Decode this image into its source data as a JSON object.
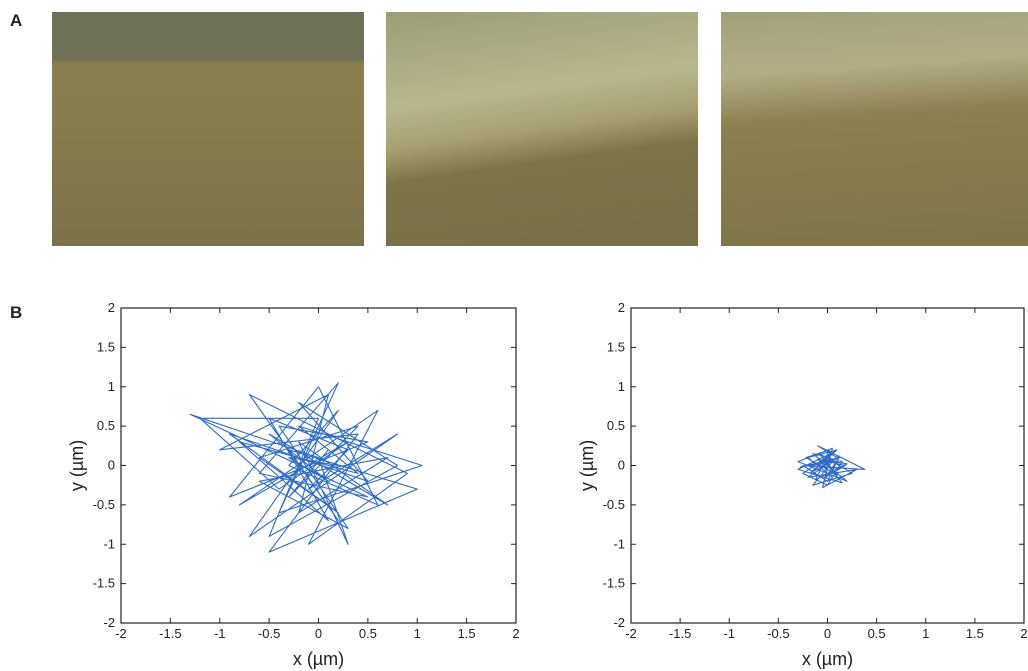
{
  "panel_labels": [
    "A",
    "B"
  ],
  "chart_data": [
    {
      "type": "line",
      "color": "#2d6bc4",
      "x": [
        0.1,
        -0.3,
        0.4,
        -0.6,
        0.2,
        -0.9,
        0.5,
        -0.2,
        0.8,
        -0.5,
        0.0,
        -1.2,
        -0.4,
        0.3,
        -0.8,
        0.6,
        -0.1,
        0.9,
        -0.7,
        0.2,
        -0.3,
        1.0,
        -0.5,
        0.4,
        -1.0,
        0.1,
        -0.2,
        0.7,
        -0.6,
        0.3,
        -0.4,
        0.5,
        -0.9,
        0.0,
        0.6,
        -0.3,
        0.2,
        -0.7,
        0.8,
        -0.1,
        0.3,
        -0.5,
        0.1,
        -0.8,
        0.4,
        -0.2,
        1.05,
        -0.4,
        0.2,
        -0.6,
        0.5,
        -1.3,
        0.0,
        0.3,
        -0.2,
        0.7,
        -0.5,
        0.1,
        -0.3,
        0.2
      ],
      "values": [
        0.2,
        -0.4,
        0.5,
        0.1,
        -0.6,
        0.4,
        -0.2,
        0.8,
        0.0,
        -0.9,
        0.6,
        0.6,
        -0.3,
        0.3,
        -0.5,
        0.7,
        -1.0,
        -0.1,
        0.9,
        -0.7,
        0.2,
        -0.3,
        -1.1,
        0.4,
        0.2,
        0.9,
        -0.6,
        0.1,
        -0.2,
        -0.8,
        0.5,
        0.3,
        -0.4,
        1.0,
        -0.5,
        0.0,
        0.7,
        -0.9,
        0.4,
        -0.3,
        0.2,
        0.6,
        -0.7,
        0.3,
        -0.1,
        0.5,
        0.0,
        -0.6,
        1.05,
        -0.1,
        -0.4,
        0.65,
        0.1,
        -1.0,
        0.3,
        -0.5,
        0.4,
        -0.2,
        0.1,
        0.0
      ],
      "xlabel": "x (µm)",
      "ylabel": "y (µm)",
      "xlim": [
        -2,
        2
      ],
      "ylim": [
        -2,
        2
      ],
      "xticks": [
        -2,
        -1.5,
        -1,
        -0.5,
        0,
        0.5,
        1,
        1.5,
        2
      ],
      "yticks": [
        -2,
        -1.5,
        -1,
        -0.5,
        0,
        0.5,
        1,
        1.5,
        2
      ]
    },
    {
      "type": "line",
      "color": "#2d6bc4",
      "x": [
        -0.1,
        0.05,
        -0.2,
        0.1,
        -0.25,
        0.0,
        0.15,
        -0.15,
        0.2,
        -0.3,
        0.05,
        -0.05,
        0.3,
        -0.2,
        0.1,
        -0.1,
        0.38,
        -0.25,
        0.0,
        0.12,
        -0.18,
        0.08,
        -0.3,
        0.15,
        -0.05,
        0.2,
        -0.12,
        0.02,
        -0.22,
        0.1,
        -0.08,
        0.25,
        -0.15,
        0.05,
        -0.28,
        0.12,
        -0.02,
        0.18,
        -0.1,
        0.0
      ],
      "values": [
        0.0,
        -0.15,
        0.1,
        0.2,
        -0.1,
        -0.25,
        0.05,
        0.15,
        -0.2,
        0.05,
        0.22,
        -0.28,
        -0.05,
        -0.15,
        0.1,
        0.25,
        -0.05,
        0.0,
        -0.2,
        0.12,
        -0.1,
        0.18,
        -0.05,
        -0.22,
        0.08,
        0.02,
        -0.18,
        0.2,
        0.1,
        -0.12,
        0.15,
        -0.1,
        -0.25,
        0.05,
        -0.02,
        0.1,
        -0.15,
        0.0,
        0.08,
        -0.05
      ],
      "xlabel": "x (µm)",
      "ylabel": "y (µm)",
      "xlim": [
        -2,
        2
      ],
      "ylim": [
        -2,
        2
      ],
      "xticks": [
        -2,
        -1.5,
        -1,
        -0.5,
        0,
        0.5,
        1,
        1.5,
        2
      ],
      "yticks": [
        -2,
        -1.5,
        -1,
        -0.5,
        0,
        0.5,
        1,
        1.5,
        2
      ]
    }
  ]
}
